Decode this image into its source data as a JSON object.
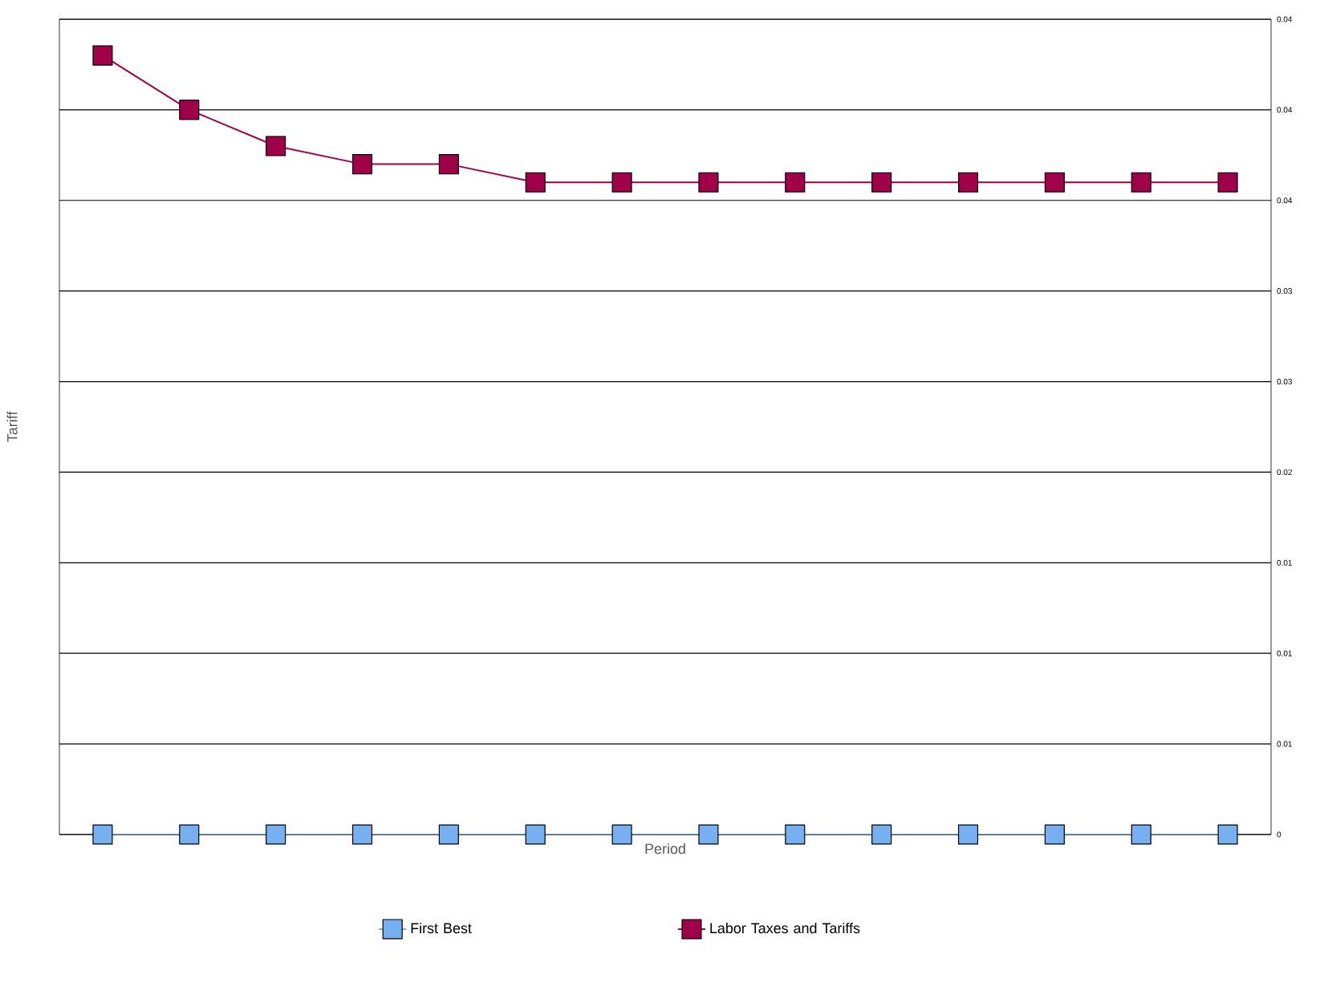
{
  "chart_data": {
    "type": "line",
    "xlabel": "Period",
    "ylabel": "Tariff",
    "categories": [
      null,
      null,
      null,
      null,
      null,
      null,
      null,
      null,
      null,
      null,
      null,
      null,
      null,
      null
    ],
    "series": [
      {
        "name": "First Best",
        "color": "#77b0f0",
        "values": [
          0,
          0,
          0,
          0,
          0,
          0,
          0,
          0,
          0,
          0,
          0,
          0,
          0,
          0
        ]
      },
      {
        "name": "Labor Taxes and Tariffs",
        "color": "#a0004a",
        "values": [
          0.043,
          0.04,
          0.038,
          0.037,
          0.037,
          0.036,
          0.036,
          0.036,
          0.036,
          0.036,
          0.036,
          0.036,
          0.036,
          0.036
        ]
      }
    ],
    "ylim": [
      0,
      0.045
    ],
    "yticks": [
      0,
      {
        "value": 0.005,
        "label": "0.01"
      },
      0.01,
      {
        "value": 0.015,
        "label": "0.01"
      },
      0.02,
      {
        "value": 0.025,
        "label": "0.03"
      },
      0.03,
      {
        "value": 0.035,
        "label": "0.04"
      },
      0.04,
      {
        "value": 0.045,
        "label": "0.04"
      }
    ],
    "grid": "y",
    "legend": "bottom",
    "marker": "square",
    "line_style": "solid"
  }
}
